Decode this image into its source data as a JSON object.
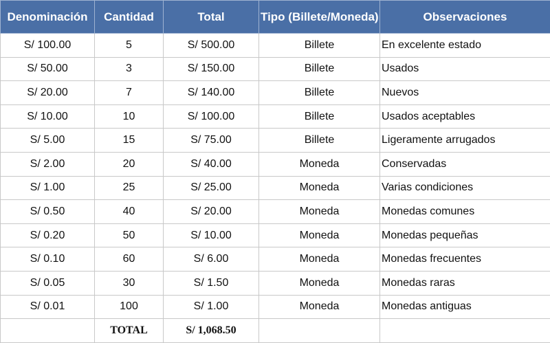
{
  "table": {
    "header": [
      "Denominación",
      "Cantidad",
      "Total",
      "Tipo (Billete/Moneda)",
      "Observaciones"
    ],
    "rows": [
      [
        "S/ 100.00",
        "5",
        "S/ 500.00",
        "Billete",
        "En excelente estado"
      ],
      [
        "S/ 50.00",
        "3",
        "S/ 150.00",
        "Billete",
        "Usados"
      ],
      [
        "S/ 20.00",
        "7",
        "S/ 140.00",
        "Billete",
        "Nuevos"
      ],
      [
        "S/ 10.00",
        "10",
        "S/ 100.00",
        "Billete",
        "Usados aceptables"
      ],
      [
        "S/ 5.00",
        "15",
        "S/ 75.00",
        "Billete",
        "Ligeramente arrugados"
      ],
      [
        "S/ 2.00",
        "20",
        "S/ 40.00",
        "Moneda",
        "Conservadas"
      ],
      [
        "S/ 1.00",
        "25",
        "S/ 25.00",
        "Moneda",
        "Varias condiciones"
      ],
      [
        "S/ 0.50",
        "40",
        "S/ 20.00",
        "Moneda",
        "Monedas comunes"
      ],
      [
        "S/ 0.20",
        "50",
        "S/ 10.00",
        "Moneda",
        "Monedas pequeñas"
      ],
      [
        "S/ 0.10",
        "60",
        "S/ 6.00",
        "Moneda",
        "Monedas frecuentes"
      ],
      [
        "S/ 0.05",
        "30",
        "S/ 1.50",
        "Moneda",
        "Monedas raras"
      ],
      [
        "S/ 0.01",
        "100",
        "S/ 1.00",
        "Moneda",
        "Monedas antiguas"
      ]
    ],
    "total": {
      "label": "TOTAL",
      "value": "S/ 1,068.50"
    }
  }
}
